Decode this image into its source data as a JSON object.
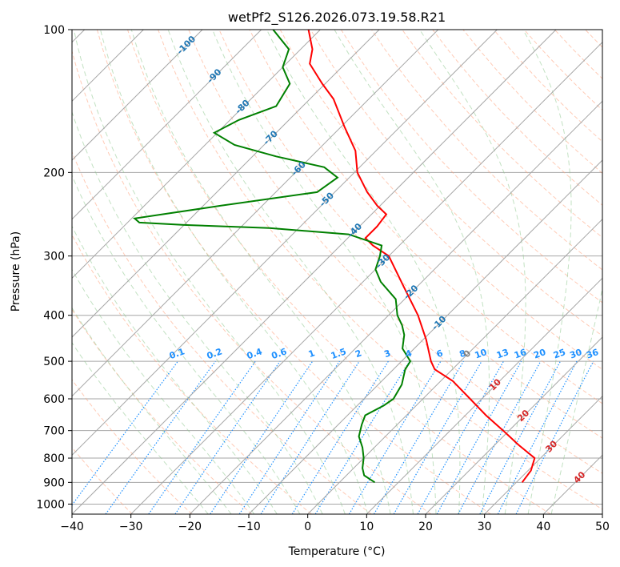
{
  "chart_data": {
    "type": "skew-t log-p",
    "title": "wetPf2_S126.2026.073.19.58.R21",
    "xlabel": "Temperature (°C)",
    "ylabel": "Pressure (hPa)",
    "xlim": [
      -40,
      50
    ],
    "ylim": [
      1050,
      100
    ],
    "x_ticks": [
      "−40",
      "−30",
      "−20",
      "−10",
      "0",
      "10",
      "20",
      "30",
      "40",
      "50"
    ],
    "y_ticks": [
      {
        "p": 100,
        "label": "100"
      },
      {
        "p": 200,
        "label": "200"
      },
      {
        "p": 300,
        "label": "300"
      },
      {
        "p": 400,
        "label": "400"
      },
      {
        "p": 500,
        "label": "500"
      },
      {
        "p": 600,
        "label": "600"
      },
      {
        "p": 700,
        "label": "700"
      },
      {
        "p": 800,
        "label": "800"
      },
      {
        "p": 900,
        "label": "900"
      },
      {
        "p": 1000,
        "label": "1000"
      }
    ],
    "grid": true,
    "temperature_color": "#ff0000",
    "dewpoint_color": "#008000",
    "temperature_profile": [
      [
        900,
        31.0
      ],
      [
        850,
        30.5
      ],
      [
        800,
        29.0
      ],
      [
        750,
        24.0
      ],
      [
        700,
        19.0
      ],
      [
        650,
        13.5
      ],
      [
        600,
        8.0
      ],
      [
        550,
        2.0
      ],
      [
        520,
        -3.0
      ],
      [
        500,
        -5.0
      ],
      [
        450,
        -9.5
      ],
      [
        400,
        -15.0
      ],
      [
        350,
        -22.0
      ],
      [
        300,
        -30.0
      ],
      [
        285,
        -34.5
      ],
      [
        275,
        -37.0
      ],
      [
        260,
        -37.0
      ],
      [
        245,
        -37.5
      ],
      [
        235,
        -40.5
      ],
      [
        220,
        -44.5
      ],
      [
        200,
        -49.5
      ],
      [
        180,
        -53.5
      ],
      [
        160,
        -59.5
      ],
      [
        140,
        -66.0
      ],
      [
        130,
        -70.5
      ],
      [
        118,
        -76.0
      ],
      [
        110,
        -78.0
      ],
      [
        100,
        -82.0
      ]
    ],
    "dewpoint_profile": [
      [
        900,
        6.0
      ],
      [
        870,
        3.0
      ],
      [
        840,
        1.5
      ],
      [
        800,
        0.0
      ],
      [
        760,
        -2.0
      ],
      [
        720,
        -4.5
      ],
      [
        680,
        -6.0
      ],
      [
        650,
        -7.0
      ],
      [
        620,
        -5.5
      ],
      [
        600,
        -5.0
      ],
      [
        560,
        -6.0
      ],
      [
        520,
        -8.0
      ],
      [
        500,
        -8.5
      ],
      [
        470,
        -12.0
      ],
      [
        440,
        -14.0
      ],
      [
        420,
        -16.0
      ],
      [
        400,
        -18.5
      ],
      [
        370,
        -21.5
      ],
      [
        340,
        -27.0
      ],
      [
        320,
        -30.0
      ],
      [
        300,
        -31.5
      ],
      [
        285,
        -33.0
      ],
      [
        270,
        -40.5
      ],
      [
        262,
        -55.0
      ],
      [
        258,
        -70.0
      ],
      [
        255,
        -78.0
      ],
      [
        250,
        -79.5
      ],
      [
        245,
        -75.5
      ],
      [
        235,
        -67.0
      ],
      [
        220,
        -53.0
      ],
      [
        205,
        -52.0
      ],
      [
        195,
        -56.0
      ],
      [
        185,
        -66.0
      ],
      [
        175,
        -75.0
      ],
      [
        165,
        -80.5
      ],
      [
        155,
        -78.5
      ],
      [
        145,
        -74.5
      ],
      [
        130,
        -76.0
      ],
      [
        120,
        -80.0
      ],
      [
        110,
        -82.0
      ],
      [
        100,
        -88.0
      ]
    ],
    "isotherm_labels": [
      "-100",
      "-90",
      "-80",
      "-70",
      "-60",
      "-50",
      "-40",
      "-30",
      "-20",
      "-10",
      "0",
      "10",
      "20",
      "30",
      "40"
    ],
    "isotherm_label_values": [
      -100,
      -90,
      -80,
      -70,
      -60,
      -50,
      -40,
      -30,
      -20,
      -10,
      0,
      10,
      20,
      30,
      40
    ],
    "mixing_ratio_labels": [
      "0.1",
      "0.2",
      "0.4",
      "0.6",
      "1",
      "1.5",
      "2",
      "3",
      "4",
      "6",
      "8",
      "10",
      "13",
      "16",
      "20",
      "25",
      "30",
      "36"
    ],
    "mixing_ratio_values": [
      0.1,
      0.2,
      0.4,
      0.6,
      1,
      1.5,
      2,
      3,
      4,
      6,
      8,
      10,
      13,
      16,
      20,
      25,
      30,
      36
    ],
    "line_colors": {
      "isotherm": "#a6a6a6",
      "dry_adiabat": "#ffa07a",
      "moist_adiabat": "#90c890",
      "mixing_ratio": "#1e90ff",
      "label_cold": "#1f77b4",
      "label_zero": "#808080",
      "label_warm": "#d62728"
    }
  }
}
